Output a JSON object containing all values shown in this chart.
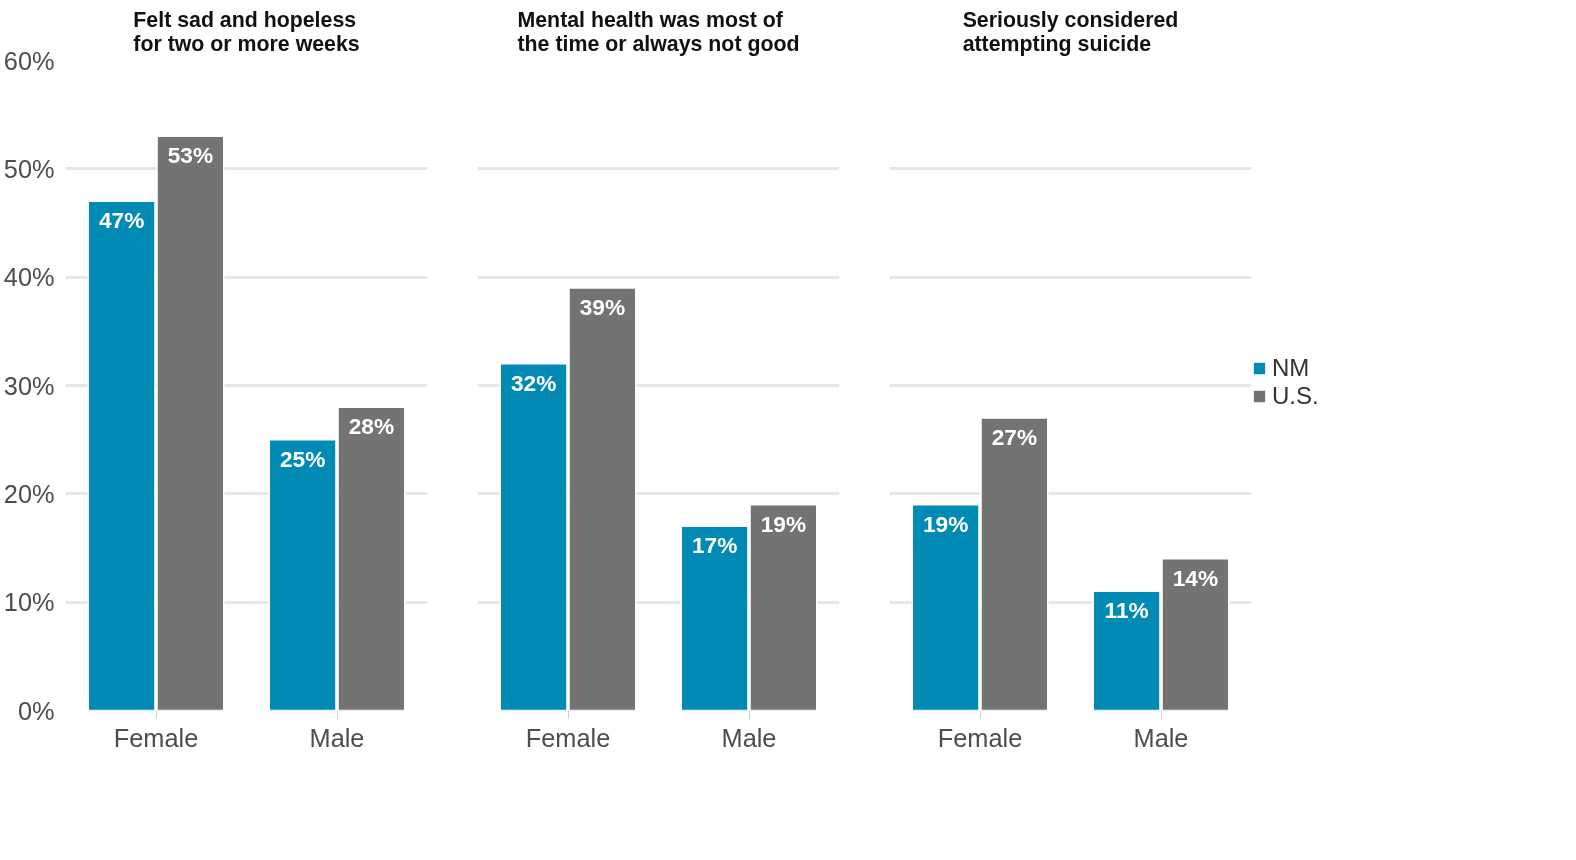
{
  "chart_data": [
    {
      "type": "bar",
      "title": "Felt sad and hopeless for two or more weeks",
      "categories": [
        "Female",
        "Male"
      ],
      "ylim": [
        0,
        60
      ],
      "yticks": [
        {
          "value": 0,
          "label": "0%"
        },
        {
          "value": 10,
          "label": "10%"
        },
        {
          "value": 20,
          "label": "20%"
        },
        {
          "value": 30,
          "label": "30%"
        },
        {
          "value": 40,
          "label": "40%"
        },
        {
          "value": 50,
          "label": "50%"
        },
        {
          "value": 60,
          "label": "60%"
        }
      ],
      "grid": "y",
      "series": [
        {
          "color": "#008ab4",
          "values": [
            47,
            25
          ],
          "value_labels": [
            "47%",
            "25%"
          ]
        },
        {
          "color": "#737373",
          "values": [
            53,
            28
          ],
          "value_labels": [
            "53%",
            "28%"
          ]
        }
      ]
    },
    {
      "type": "bar",
      "title": "Mental health was most of the time or always not good",
      "categories": [
        "Female",
        "Male"
      ],
      "ylim": [
        0,
        60
      ],
      "yticks": [
        0,
        10,
        20,
        30,
        40,
        50,
        60
      ],
      "grid": "y",
      "tick_labels": "x",
      "series": [
        {
          "color": "#008ab4",
          "values": [
            32,
            17
          ],
          "value_labels": [
            "32%",
            "17%"
          ]
        },
        {
          "color": "#737373",
          "values": [
            39,
            19
          ],
          "value_labels": [
            "39%",
            "19%"
          ]
        }
      ]
    },
    {
      "type": "bar",
      "title": "Seriously considered attempting suicide",
      "categories": [
        "Female",
        "Male"
      ],
      "ylim": [
        0,
        60
      ],
      "yticks": [
        0,
        10,
        20,
        30,
        40,
        50,
        60
      ],
      "grid": "y",
      "legend": "right",
      "tick_labels": "x",
      "series": [
        {
          "name": "NM",
          "color": "#008ab4",
          "values": [
            19,
            11
          ],
          "value_labels": [
            "19%",
            "11%"
          ]
        },
        {
          "name": "U.S.",
          "color": "#737373",
          "values": [
            27,
            14
          ],
          "value_labels": [
            "27%",
            "14%"
          ]
        }
      ]
    }
  ]
}
